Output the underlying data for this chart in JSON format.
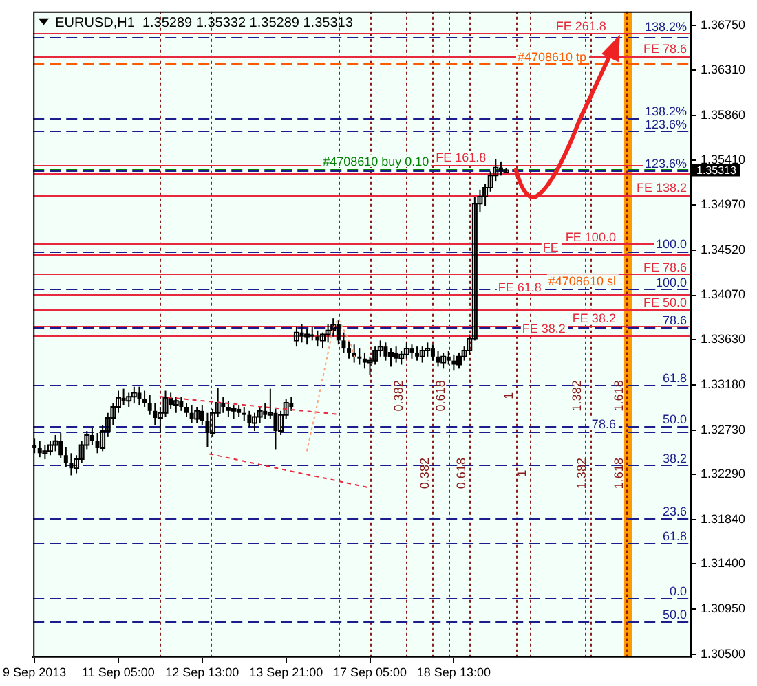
{
  "chart_data": {
    "type": "candlestick",
    "title": "EURUSD,H1  1.35289 1.35332 1.35289 1.35313",
    "color": "#000000",
    "categories": [
      "9 Sep 2013",
      null,
      null,
      null,
      null,
      null,
      null,
      null,
      null,
      null,
      null,
      null,
      null,
      null,
      null,
      null,
      null,
      null,
      null,
      null,
      null,
      null,
      null,
      null,
      null,
      null,
      null,
      null,
      null,
      null,
      null,
      null,
      "11 Sep 05:00",
      null,
      null,
      null,
      null,
      null,
      null,
      null,
      null,
      null,
      null,
      null,
      null,
      null,
      null,
      null,
      null,
      null,
      null,
      null,
      null,
      null,
      null,
      null,
      null,
      null,
      null,
      null,
      null,
      null,
      null,
      null,
      "12 Sep 13:00",
      null,
      null,
      null,
      null,
      null,
      null,
      null,
      null,
      null,
      null,
      null,
      null,
      null,
      null,
      null,
      null,
      null,
      null,
      null,
      null,
      null,
      null,
      null,
      null,
      null,
      null,
      null,
      null,
      null,
      null,
      null,
      "13 Sep 21:00",
      null,
      null,
      null,
      null,
      null,
      null,
      null,
      null,
      null,
      null,
      null,
      null,
      null,
      null,
      null,
      null,
      null,
      null,
      null,
      null,
      null,
      null,
      null,
      null,
      null,
      null,
      null,
      null,
      null,
      null,
      null,
      "17 Sep 05:00",
      null,
      null,
      null,
      null,
      null,
      null,
      null,
      null,
      null,
      null,
      null,
      null,
      null,
      null,
      null,
      null,
      null,
      null,
      null,
      null,
      null,
      null,
      null,
      null,
      null,
      null,
      null,
      null,
      null,
      null,
      null,
      "18 Sep 13:00",
      null,
      null,
      null,
      null,
      null,
      null,
      null,
      null,
      null,
      null,
      null,
      null,
      null,
      null,
      null,
      null,
      null,
      null,
      null,
      null,
      null,
      null,
      null,
      null,
      null,
      null,
      null,
      null,
      null,
      null,
      null,
      null,
      null,
      null,
      null,
      null,
      null,
      null,
      null,
      null,
      null,
      null,
      null,
      null,
      null,
      null,
      null,
      null,
      null,
      null,
      null,
      null,
      null,
      null,
      null,
      null,
      null,
      null,
      null,
      null,
      null,
      null,
      null,
      null,
      null,
      null,
      null,
      null,
      null,
      null,
      null,
      null,
      null,
      null,
      null,
      null,
      null,
      null,
      null,
      null,
      null,
      null,
      null,
      null,
      null,
      null,
      null,
      null,
      null,
      null
    ],
    "ohlc": [
      [
        1.3258,
        1.3265,
        1.325,
        1.3255
      ],
      null,
      [
        1.3255,
        1.3262,
        1.3246,
        1.325
      ],
      null,
      [
        1.325,
        1.3258,
        1.3244,
        1.3252
      ],
      null,
      [
        1.3252,
        1.3262,
        1.3248,
        1.3258
      ],
      null,
      [
        1.3258,
        1.3268,
        1.3252,
        1.3262
      ],
      null,
      [
        1.3262,
        1.327,
        1.3245,
        1.3248
      ],
      null,
      [
        1.3248,
        1.3256,
        1.3236,
        1.324
      ],
      null,
      [
        1.324,
        1.325,
        1.3228,
        1.3235
      ],
      null,
      [
        1.3235,
        1.3248,
        1.323,
        1.3244
      ],
      null,
      [
        1.3244,
        1.3262,
        1.324,
        1.3258
      ],
      null,
      [
        1.3258,
        1.3272,
        1.3254,
        1.3268
      ],
      null,
      [
        1.3268,
        1.3275,
        1.3258,
        1.3262
      ],
      null,
      [
        1.3262,
        1.327,
        1.325,
        1.3255
      ],
      null,
      [
        1.3255,
        1.3278,
        1.3252,
        1.3272
      ],
      null,
      [
        1.3272,
        1.329,
        1.3266,
        1.3285
      ],
      null,
      [
        1.3285,
        1.33,
        1.3278,
        1.3296
      ],
      null,
      [
        1.3296,
        1.3312,
        1.329,
        1.3305
      ],
      null,
      [
        1.3305,
        1.3314,
        1.3298,
        1.3302
      ],
      null,
      [
        1.3302,
        1.331,
        1.3296,
        1.3306
      ],
      null,
      [
        1.3306,
        1.3316,
        1.33,
        1.331
      ],
      null,
      [
        1.331,
        1.3316,
        1.3298,
        1.3304
      ],
      null,
      [
        1.3304,
        1.3312,
        1.3296,
        1.33
      ],
      null,
      [
        1.33,
        1.3308,
        1.3288,
        1.3292
      ],
      null,
      [
        1.3292,
        1.33,
        1.3278,
        1.3285
      ],
      null,
      [
        1.3285,
        1.3296,
        1.327,
        1.329
      ],
      null,
      [
        1.329,
        1.3312,
        1.3286,
        1.3305
      ],
      null,
      [
        1.3305,
        1.331,
        1.3294,
        1.3298
      ],
      null,
      [
        1.3298,
        1.3306,
        1.329,
        1.3302
      ],
      null,
      [
        1.3302,
        1.3306,
        1.3292,
        1.3296
      ],
      null,
      [
        1.3296,
        1.33,
        1.3286,
        1.329
      ],
      null,
      [
        1.329,
        1.3298,
        1.328,
        1.3284
      ],
      null,
      [
        1.3284,
        1.3296,
        1.328,
        1.3292
      ],
      null,
      [
        1.3292,
        1.3298,
        1.3278,
        1.3282
      ],
      null,
      [
        1.3282,
        1.329,
        1.3256,
        1.327
      ],
      null,
      [
        1.327,
        1.3294,
        1.3266,
        1.329
      ],
      null,
      [
        1.329,
        1.3315,
        1.3286,
        1.33
      ],
      null,
      [
        1.33,
        1.3306,
        1.329,
        1.3296
      ],
      null,
      [
        1.3296,
        1.3302,
        1.3286,
        1.3292
      ],
      null,
      [
        1.3292,
        1.3298,
        1.3284,
        1.3294
      ],
      null,
      [
        1.3294,
        1.3298,
        1.3286,
        1.329
      ],
      null,
      [
        1.329,
        1.3296,
        1.3282,
        1.3288
      ],
      null,
      [
        1.3288,
        1.3292,
        1.3276,
        1.328
      ],
      null,
      [
        1.328,
        1.329,
        1.3272,
        1.3286
      ],
      null,
      [
        1.3286,
        1.3296,
        1.328,
        1.3292
      ],
      null,
      [
        1.3292,
        1.33,
        1.3284,
        1.3288
      ],
      null,
      [
        1.3288,
        1.3314,
        1.3284,
        1.329
      ],
      null,
      [
        1.329,
        1.3294,
        1.3254,
        1.3272
      ],
      null,
      [
        1.3272,
        1.3292,
        1.3268,
        1.3288
      ],
      null,
      [
        1.3288,
        1.3304,
        1.3284,
        1.33
      ],
      null,
      [
        1.33,
        1.3306,
        1.3292,
        1.3296
      ],
      null,
      [
        1.3362,
        1.3376,
        1.3356,
        1.337
      ],
      null,
      [
        1.337,
        1.3378,
        1.336,
        1.3366
      ],
      null,
      [
        1.3366,
        1.3374,
        1.3358,
        1.3368
      ],
      null,
      [
        1.3368,
        1.3376,
        1.3362,
        1.3366
      ],
      null,
      [
        1.3366,
        1.3372,
        1.3356,
        1.3362
      ],
      null,
      [
        1.3362,
        1.337,
        1.3354,
        1.3368
      ],
      null,
      [
        1.3368,
        1.3378,
        1.336,
        1.3372
      ],
      null,
      [
        1.3372,
        1.3384,
        1.3366,
        1.3378
      ],
      null,
      [
        1.3378,
        1.3382,
        1.3358,
        1.3362
      ],
      null,
      [
        1.3362,
        1.337,
        1.335,
        1.3354
      ],
      null,
      [
        1.3354,
        1.3362,
        1.3344,
        1.335
      ],
      null,
      [
        1.335,
        1.3358,
        1.334,
        1.3346
      ],
      null,
      [
        1.3346,
        1.3354,
        1.3338,
        1.3344
      ],
      null,
      [
        1.3344,
        1.335,
        1.3334,
        1.334
      ],
      null,
      [
        1.334,
        1.3346,
        1.3328,
        1.3342
      ],
      null,
      [
        1.3342,
        1.3356,
        1.3338,
        1.3352
      ],
      null,
      [
        1.3352,
        1.3362,
        1.3346,
        1.3356
      ],
      null,
      [
        1.3356,
        1.336,
        1.3342,
        1.3346
      ],
      null,
      [
        1.3346,
        1.3354,
        1.3336,
        1.335
      ],
      null,
      [
        1.335,
        1.3356,
        1.334,
        1.3344
      ],
      null,
      [
        1.3344,
        1.3352,
        1.3338,
        1.3348
      ],
      null,
      [
        1.3348,
        1.336,
        1.3344,
        1.3354
      ],
      null,
      [
        1.3354,
        1.3358,
        1.3344,
        1.335
      ],
      null,
      [
        1.335,
        1.3356,
        1.3342,
        1.3346
      ],
      null,
      [
        1.3346,
        1.3356,
        1.334,
        1.3352
      ],
      null,
      [
        1.3352,
        1.336,
        1.3346,
        1.3354
      ],
      null,
      [
        1.3354,
        1.3358,
        1.3342,
        1.3346
      ],
      null,
      [
        1.3346,
        1.3352,
        1.3336,
        1.334
      ],
      null,
      [
        1.334,
        1.335,
        1.3334,
        1.3346
      ],
      null,
      [
        1.3346,
        1.3352,
        1.3338,
        1.3342
      ],
      null,
      [
        1.3342,
        1.3348,
        1.3332,
        1.3338
      ],
      null,
      [
        1.3338,
        1.335,
        1.3334,
        1.3346
      ],
      null,
      [
        1.3346,
        1.3356,
        1.3342,
        1.3352
      ],
      null,
      [
        1.3352,
        1.3368,
        1.3348,
        1.3364
      ],
      null,
      [
        1.3364,
        1.3505,
        1.3362,
        1.3498
      ],
      null,
      [
        1.3498,
        1.3512,
        1.349,
        1.3505
      ],
      null,
      [
        1.3505,
        1.3518,
        1.3496,
        1.3514
      ],
      null,
      [
        1.3514,
        1.353,
        1.351,
        1.3526
      ],
      null,
      [
        1.3526,
        1.3542,
        1.352,
        1.3534
      ],
      null,
      [
        1.3534,
        1.354,
        1.3526,
        1.353
      ],
      null,
      [
        1.35289,
        1.35332,
        1.35289,
        1.35313
      ],
      null,
      null,
      null,
      null,
      null,
      null,
      null,
      null,
      null,
      null,
      null,
      null,
      null,
      null,
      null,
      null,
      null,
      null,
      null,
      null,
      null,
      null,
      null,
      null,
      null,
      null,
      null,
      null,
      null,
      null,
      null,
      null,
      null,
      null,
      null,
      null,
      null,
      null,
      null,
      null,
      null,
      null,
      null,
      null,
      null,
      null,
      null,
      null,
      null,
      null,
      null,
      null,
      null,
      null,
      null,
      null,
      null,
      null,
      null,
      null,
      null,
      null,
      null,
      null,
      null,
      null,
      null,
      null,
      null,
      null
    ],
    "ylim": [
      1.3047,
      1.3689
    ],
    "yticks": [
      {
        "value": 1.3675,
        "label": "1.36750"
      },
      {
        "value": 1.3631,
        "label": "1.36310"
      },
      {
        "value": 1.3586,
        "label": "1.35860"
      },
      {
        "value": 1.3541,
        "label": "1.35410"
      },
      {
        "value": 1.3497,
        "label": "1.34970"
      },
      {
        "value": 1.3452,
        "label": "1.34520"
      },
      {
        "value": 1.3407,
        "label": "1.34070"
      },
      {
        "value": 1.3363,
        "label": "1.33630"
      },
      {
        "value": 1.3318,
        "label": "1.33180"
      },
      {
        "value": 1.3273,
        "label": "1.32730"
      },
      {
        "value": 1.3229,
        "label": "1.32290"
      },
      {
        "value": 1.3184,
        "label": "1.31840"
      },
      {
        "value": 1.314,
        "label": "1.31400"
      },
      {
        "value": 1.3095,
        "label": "1.30950"
      },
      {
        "value": 1.305,
        "label": "1.30500"
      }
    ],
    "grid": false,
    "legend": false,
    "ref_lines": [
      {
        "axis": "y",
        "value": 1.3667,
        "color": "#1c1c8c",
        "line_style": "dashed"
      },
      {
        "axis": "y",
        "value": 1.3663,
        "color": "#1c1c8c",
        "line_style": "dashed"
      },
      {
        "axis": "y",
        "value": 1.3668,
        "label": "FE 261.8",
        "color": "#e8283c",
        "line_style": "solid"
      },
      {
        "axis": "y",
        "value": 1.3645,
        "label": "FE 78.6",
        "color": "#e8283c",
        "line_style": "solid"
      },
      {
        "axis": "y",
        "value": 1.3637,
        "label": "#4708610 tp",
        "color": "#ff5a00",
        "line_style": "dashed"
      },
      {
        "axis": "y",
        "value": 1.3583,
        "color": "#1c1c8c",
        "line_style": "dashed"
      },
      {
        "axis": "y",
        "value": 1.357,
        "color": "#1c1c8c",
        "line_style": "dashed"
      },
      {
        "axis": "y",
        "value": 1.3537,
        "label": "FE 161.8",
        "color": "#e8283c",
        "line_style": "solid"
      },
      {
        "axis": "y",
        "value": 1.3533,
        "label": "#4708610 buy 0.10",
        "color": "#008000",
        "line_style": "dashed"
      },
      {
        "axis": "y",
        "value": 1.3531,
        "color": "#1c1c8c",
        "line_style": "dashed"
      },
      {
        "axis": "y",
        "value": 1.3528,
        "color": "#e8283c",
        "line_style": "solid"
      },
      {
        "axis": "y",
        "value": 1.3507,
        "label": "FE 138.2",
        "color": "#e8283c",
        "line_style": "solid"
      },
      {
        "axis": "y",
        "value": 1.3458,
        "label": "FE 100.0",
        "color": "#e8283c",
        "line_style": "solid"
      },
      {
        "axis": "y",
        "value": 1.3451,
        "color": "#1c1c8c",
        "line_style": "dashed"
      },
      {
        "axis": "y",
        "value": 1.3448,
        "label": "FE",
        "color": "#e8283c",
        "line_style": "solid"
      },
      {
        "axis": "y",
        "value": 1.3428,
        "label": "FE 78.6",
        "color": "#e8283c",
        "line_style": "solid"
      },
      {
        "axis": "y",
        "value": 1.3414,
        "label": "#4708610 sl",
        "color": "#ff5a00",
        "line_style": "dashed"
      },
      {
        "axis": "y",
        "value": 1.3413,
        "color": "#1c1c8c",
        "line_style": "dashed"
      },
      {
        "axis": "y",
        "value": 1.3408,
        "label": "FE 61.8",
        "color": "#e8283c",
        "line_style": "solid"
      },
      {
        "axis": "y",
        "value": 1.3393,
        "label": "FE 50.0",
        "color": "#e8283c",
        "line_style": "solid"
      },
      {
        "axis": "y",
        "value": 1.3377,
        "label": "FE 38.2",
        "color": "#e8283c",
        "line_style": "solid"
      },
      {
        "axis": "y",
        "value": 1.3375,
        "color": "#1c1c8c",
        "line_style": "dashed"
      },
      {
        "axis": "y",
        "value": 1.3367,
        "label": "FE 38.2",
        "color": "#e8283c",
        "line_style": "solid"
      },
      {
        "axis": "y",
        "value": 1.3318,
        "color": "#1c1c8c",
        "line_style": "dashed"
      },
      {
        "axis": "y",
        "value": 1.3277,
        "color": "#1c1c8c",
        "line_style": "dashed"
      },
      {
        "axis": "y",
        "value": 1.3272,
        "color": "#1c1c8c",
        "line_style": "dashed"
      },
      {
        "axis": "y",
        "value": 1.3238,
        "color": "#1c1c8c",
        "line_style": "dashed"
      },
      {
        "axis": "y",
        "value": 1.3185,
        "color": "#1c1c8c",
        "line_style": "dashed"
      },
      {
        "axis": "y",
        "value": 1.3161,
        "color": "#1c1c8c",
        "line_style": "dashed"
      },
      {
        "axis": "y",
        "value": 1.3106,
        "color": "#1c1c8c",
        "line_style": "dashed"
      },
      {
        "axis": "y",
        "value": 1.3083,
        "color": "#1c1c8c",
        "line_style": "dashed"
      }
    ],
    "annotations": [
      "1.35313",
      {
        "text": "138.2%",
        "y": 1.3667
      },
      {
        "text": "138.2%",
        "y": 1.3583
      },
      {
        "text": "123.6%",
        "y": 1.357
      },
      {
        "text": "123.6%",
        "y": 1.3531
      },
      {
        "text": "100.0",
        "y": 1.3451
      },
      {
        "text": "100.0",
        "y": 1.3413
      },
      {
        "text": "78.6",
        "y": 1.3375
      },
      {
        "text": "61.8",
        "y": 1.3318
      },
      {
        "text": "50.0",
        "y": 1.3277
      },
      {
        "text": "78.6",
        "y": 1.3272
      },
      {
        "text": "38.2",
        "y": 1.3238
      },
      {
        "text": "23.6",
        "y": 1.3185
      },
      {
        "text": "61.8",
        "y": 1.3161
      },
      {
        "text": "0.0",
        "y": 1.3106
      },
      {
        "text": "50.0",
        "y": 1.3083
      },
      "0.382",
      "0.382",
      "0.618",
      "0.618",
      "1",
      "1",
      "1.382",
      "1.382",
      "1.618",
      "1.618"
    ]
  }
}
